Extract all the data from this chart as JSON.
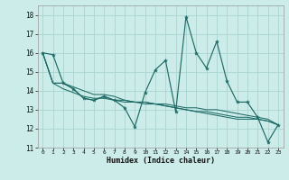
{
  "xlabel": "Humidex (Indice chaleur)",
  "background_color": "#ccecea",
  "grid_color": "#aad4d0",
  "line_color": "#1e6b65",
  "xlim": [
    -0.5,
    23.5
  ],
  "ylim": [
    11,
    18.5
  ],
  "xticks": [
    0,
    1,
    2,
    3,
    4,
    5,
    6,
    7,
    8,
    9,
    10,
    11,
    12,
    13,
    14,
    15,
    16,
    17,
    18,
    19,
    20,
    21,
    22,
    23
  ],
  "yticks": [
    11,
    12,
    13,
    14,
    15,
    16,
    17,
    18
  ],
  "series": [
    [
      16.0,
      15.9,
      14.4,
      14.1,
      13.6,
      13.5,
      13.7,
      13.5,
      13.1,
      12.1,
      13.9,
      15.1,
      15.6,
      12.9,
      17.9,
      16.0,
      15.2,
      16.6,
      14.5,
      13.4,
      13.4,
      12.6,
      11.3,
      12.2
    ],
    [
      16.0,
      14.4,
      14.4,
      14.1,
      13.6,
      13.5,
      13.7,
      13.5,
      13.4,
      13.4,
      13.4,
      13.3,
      13.2,
      13.1,
      13.0,
      12.9,
      12.8,
      12.7,
      12.6,
      12.5,
      12.5,
      12.5,
      12.4,
      12.2
    ],
    [
      16.0,
      14.4,
      14.1,
      13.9,
      13.7,
      13.6,
      13.6,
      13.5,
      13.5,
      13.4,
      13.3,
      13.3,
      13.2,
      13.1,
      13.0,
      12.9,
      12.9,
      12.8,
      12.7,
      12.6,
      12.6,
      12.5,
      12.4,
      12.2
    ],
    [
      16.0,
      14.4,
      14.4,
      14.2,
      14.0,
      13.8,
      13.8,
      13.7,
      13.5,
      13.4,
      13.4,
      13.3,
      13.3,
      13.2,
      13.1,
      13.1,
      13.0,
      13.0,
      12.9,
      12.8,
      12.7,
      12.6,
      12.5,
      12.2
    ]
  ]
}
